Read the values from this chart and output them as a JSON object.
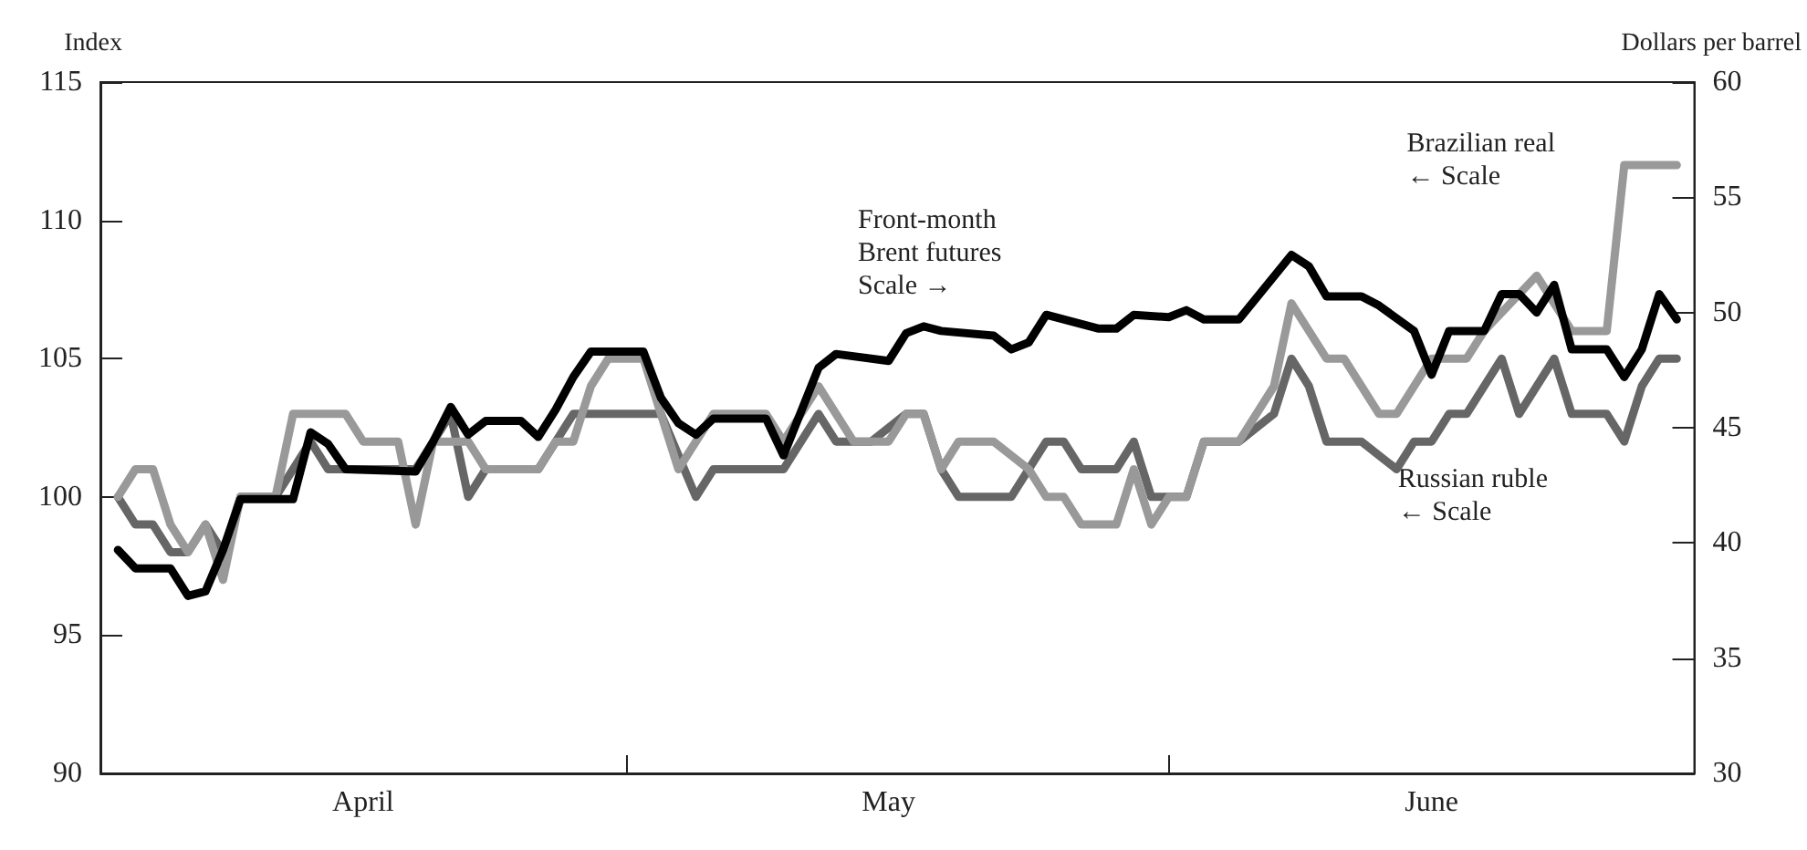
{
  "chart_data": {
    "type": "line",
    "ylabel": "Index",
    "y2label": "Dollars per barrel",
    "xlim": [
      "--04-01",
      "--07-01"
    ],
    "xticks": [
      {
        "value": "--05-01",
        "label": null
      },
      {
        "value": "--06-01",
        "label": null
      },
      {
        "value": "--04-16",
        "label": "April"
      },
      {
        "value": "--05-16",
        "label": "May"
      },
      {
        "value": "--06-16",
        "label": "June"
      }
    ],
    "ylim": [
      90,
      115
    ],
    "yticks": [
      90,
      95,
      100,
      105,
      110,
      115
    ],
    "y2lim": [
      30,
      60
    ],
    "y2ticks": [
      30,
      35,
      40,
      45,
      50,
      55,
      60
    ],
    "grid": false,
    "legend": false,
    "marker": "none",
    "line_style": "solid",
    "annotations": [
      "Scale →",
      "← Scale",
      "← Scale"
    ],
    "series": [
      {
        "name": "Front-month Brent futures",
        "color": "#000000",
        "axis": "y2",
        "x": [
          "--04-02",
          "--04-03",
          "--04-05",
          "--04-06",
          "--04-07",
          "--04-08",
          "--04-09",
          "--04-12",
          "--04-13",
          "--04-14",
          "--04-15",
          "--04-19",
          "--04-20",
          "--04-21",
          "--04-22",
          "--04-23",
          "--04-25",
          "--04-26",
          "--04-27",
          "--04-28",
          "--04-29",
          "--05-02",
          "--05-03",
          "--05-04",
          "--05-05",
          "--05-06",
          "--05-09",
          "--05-10",
          "--05-12",
          "--05-13",
          "--05-16",
          "--05-17",
          "--05-18",
          "--05-19",
          "--05-22",
          "--05-23",
          "--05-24",
          "--05-25",
          "--05-28",
          "--05-29",
          "--05-30",
          "--06-01",
          "--06-02",
          "--06-03",
          "--06-05",
          "--06-08",
          "--06-09",
          "--06-10",
          "--06-12",
          "--06-13",
          "--06-15",
          "--06-16",
          "--06-17",
          "--06-19",
          "--06-20",
          "--06-21",
          "--06-22",
          "--06-23",
          "--06-24",
          "--06-26",
          "--06-27",
          "--06-28",
          "--06-29",
          "--06-30"
        ],
        "values": [
          39.7,
          38.9,
          38.9,
          37.7,
          37.9,
          39.7,
          41.9,
          41.9,
          44.8,
          44.3,
          43.2,
          43.1,
          44.4,
          45.9,
          44.7,
          45.3,
          45.3,
          44.6,
          45.8,
          47.2,
          48.3,
          48.3,
          46.3,
          45.2,
          44.7,
          45.4,
          45.4,
          43.8,
          47.6,
          48.2,
          47.9,
          49.1,
          49.4,
          49.2,
          49.0,
          48.4,
          48.7,
          49.9,
          49.3,
          49.3,
          49.9,
          49.8,
          50.1,
          49.7,
          49.7,
          52.5,
          52.0,
          50.7,
          50.7,
          50.3,
          49.2,
          47.3,
          49.2,
          49.2,
          50.8,
          50.8,
          50.0,
          51.2,
          48.4,
          48.4,
          47.2,
          48.4,
          50.8,
          49.7
        ]
      },
      {
        "name": "Brazilian real",
        "color": "#999999",
        "x": [
          "--04-02",
          "--04-03",
          "--04-04",
          "--04-05",
          "--04-06",
          "--04-07",
          "--04-08",
          "--04-09",
          "--04-11",
          "--04-12",
          "--04-15",
          "--04-16",
          "--04-18",
          "--04-19",
          "--04-20",
          "--04-22",
          "--04-23",
          "--04-26",
          "--04-27",
          "--04-28",
          "--04-29",
          "--04-30",
          "--05-02",
          "--05-04",
          "--05-06",
          "--05-09",
          "--05-10",
          "--05-12",
          "--05-14",
          "--05-16",
          "--05-17",
          "--05-18",
          "--05-19",
          "--05-20",
          "--05-22",
          "--05-24",
          "--05-25",
          "--05-26",
          "--05-27",
          "--05-29",
          "--05-30",
          "--05-31",
          "--06-01",
          "--06-02",
          "--06-03",
          "--06-05",
          "--06-07",
          "--06-08",
          "--06-10",
          "--06-11",
          "--06-13",
          "--06-14",
          "--06-16",
          "--06-18",
          "--06-19",
          "--06-22",
          "--06-24",
          "--06-26",
          "--06-27",
          "--06-30"
        ],
        "values": [
          100,
          101,
          101,
          99,
          98,
          99,
          97,
          100,
          100,
          103,
          103,
          102,
          102,
          99,
          102,
          102,
          101,
          101,
          102,
          102,
          104,
          105,
          105,
          101,
          103,
          103,
          102,
          104,
          102,
          102,
          103,
          103,
          101,
          102,
          102,
          101,
          100,
          100,
          99,
          99,
          101,
          99,
          100,
          100,
          102,
          102,
          104,
          107,
          105,
          105,
          103,
          103,
          105,
          105,
          106,
          108,
          106,
          106,
          112,
          112
        ]
      },
      {
        "name": "Russian ruble",
        "color": "#666666",
        "x": [
          "--04-02",
          "--04-03",
          "--04-04",
          "--04-05",
          "--04-06",
          "--04-07",
          "--04-08",
          "--04-09",
          "--04-11",
          "--04-13",
          "--04-14",
          "--04-19",
          "--04-21",
          "--04-22",
          "--04-23",
          "--04-26",
          "--04-28",
          "--05-03",
          "--05-05",
          "--05-06",
          "--05-10",
          "--05-12",
          "--05-13",
          "--05-15",
          "--05-17",
          "--05-18",
          "--05-19",
          "--05-20",
          "--05-23",
          "--05-25",
          "--05-26",
          "--05-27",
          "--05-29",
          "--05-30",
          "--05-31",
          "--06-02",
          "--06-03",
          "--06-05",
          "--06-07",
          "--06-08",
          "--06-09",
          "--06-10",
          "--06-12",
          "--06-14",
          "--06-15",
          "--06-16",
          "--06-17",
          "--06-18",
          "--06-20",
          "--06-21",
          "--06-23",
          "--06-24",
          "--06-26",
          "--06-27",
          "--06-28",
          "--06-29",
          "--06-30"
        ],
        "values": [
          100,
          99,
          99,
          98,
          98,
          99,
          98,
          100,
          100,
          102,
          101,
          101,
          103,
          100,
          101,
          101,
          103,
          103,
          100,
          101,
          101,
          103,
          102,
          102,
          103,
          103,
          101,
          100,
          100,
          102,
          102,
          101,
          101,
          102,
          100,
          100,
          102,
          102,
          103,
          105,
          104,
          102,
          102,
          101,
          102,
          102,
          103,
          103,
          105,
          103,
          105,
          103,
          103,
          102,
          104,
          105,
          105
        ]
      }
    ]
  }
}
